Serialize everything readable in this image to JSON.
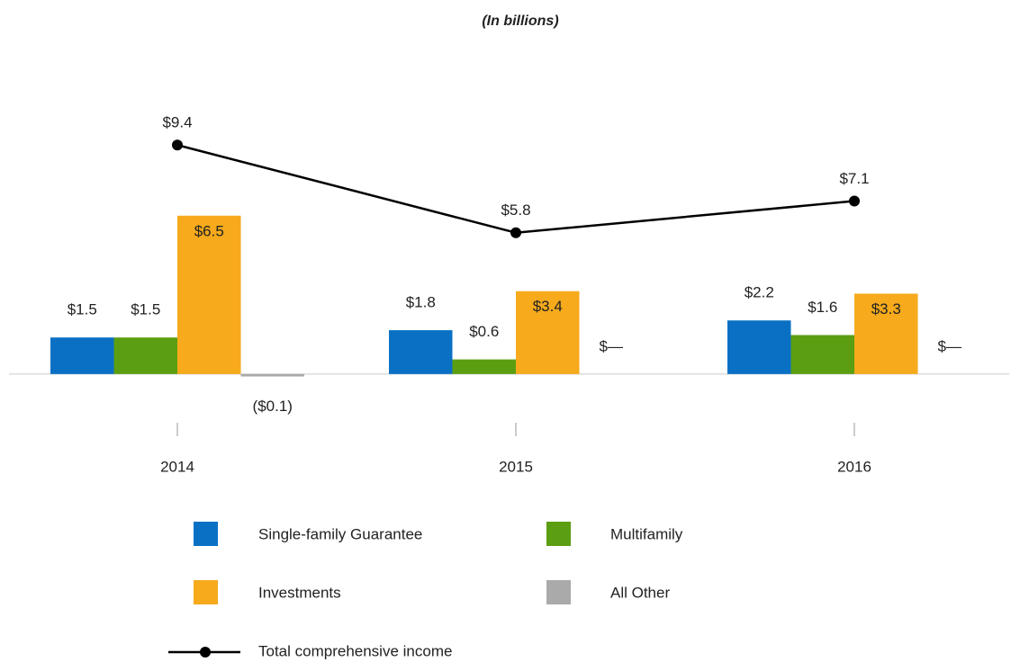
{
  "chart_data": {
    "type": "bar-line",
    "subtitle": "(In billions)",
    "categories": [
      "2014",
      "2015",
      "2016"
    ],
    "ylim": [
      -2,
      10
    ],
    "series": [
      {
        "name": "Single-family Guarantee",
        "type": "bar",
        "color": "#0a70c4",
        "values": [
          1.5,
          1.8,
          2.2
        ],
        "value_labels": [
          "$1.5",
          "$1.8",
          "$2.2"
        ]
      },
      {
        "name": "Multifamily",
        "type": "bar",
        "color": "#5c9e12",
        "values": [
          1.5,
          0.6,
          1.6
        ],
        "value_labels": [
          "$1.5",
          "$0.6",
          "$1.6"
        ]
      },
      {
        "name": "Investments",
        "type": "bar",
        "color": "#f6aa1c",
        "values": [
          6.5,
          3.4,
          3.3
        ],
        "value_labels": [
          "$6.5",
          "$3.4",
          "$3.3"
        ]
      },
      {
        "name": "All Other",
        "type": "bar",
        "color": "#aaaaaa",
        "values": [
          -0.1,
          0,
          0
        ],
        "value_labels": [
          "($0.1)",
          "$—",
          "$—"
        ]
      },
      {
        "name": "Total comprehensive income",
        "type": "line",
        "color": "#000000",
        "values": [
          9.4,
          5.8,
          7.1
        ],
        "value_labels": [
          "$9.4",
          "$5.8",
          "$7.1"
        ]
      }
    ]
  }
}
